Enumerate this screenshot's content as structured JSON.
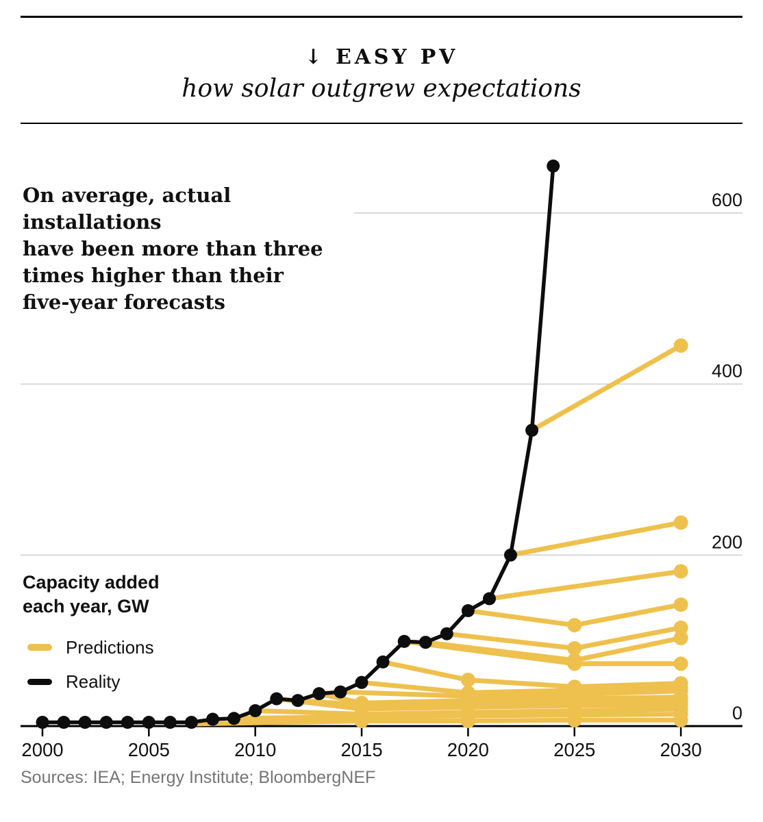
{
  "header": {
    "title": "↓ EASY PV",
    "subtitle": "how solar outgrew expectations"
  },
  "annotation": {
    "lines": [
      "On average, actual installations",
      "have been more than three",
      "times higher than their",
      "five-year forecasts"
    ]
  },
  "axis_unit": {
    "line1": "Capacity added",
    "line2": "each year, GW"
  },
  "legend": {
    "items": [
      {
        "label": "Predictions",
        "color": "#EEC04D"
      },
      {
        "label": "Reality",
        "color": "#0d0d0d"
      }
    ]
  },
  "sources": "Sources: IEA; Energy Institute; BloombergNEF",
  "colors": {
    "prediction": "#EEC04D",
    "reality": "#0d0d0d",
    "gridline": "#D8D8D8",
    "axis": "#000000",
    "tick_text": "#111111",
    "source_text": "#757575",
    "background": "#ffffff"
  },
  "chart_data": {
    "type": "line",
    "title": "EASY PV — how solar outgrew expectations",
    "xlabel": "",
    "ylabel": "Capacity added each year, GW",
    "x_ticks": [
      2000,
      2005,
      2010,
      2015,
      2020,
      2025,
      2030
    ],
    "y_ticks": [
      0,
      200,
      400,
      600
    ],
    "xlim": [
      2000,
      2032
    ],
    "ylim": [
      0,
      680
    ],
    "grid": "horizontal",
    "legend_position": "left",
    "series": [
      {
        "name": "Reality",
        "role": "reality",
        "points": [
          [
            2000,
            0.3
          ],
          [
            2001,
            0.4
          ],
          [
            2002,
            0.5
          ],
          [
            2003,
            0.6
          ],
          [
            2004,
            1.0
          ],
          [
            2005,
            1.4
          ],
          [
            2006,
            1.6
          ],
          [
            2007,
            2.5
          ],
          [
            2008,
            8
          ],
          [
            2009,
            9
          ],
          [
            2010,
            18
          ],
          [
            2011,
            32
          ],
          [
            2012,
            30
          ],
          [
            2013,
            38
          ],
          [
            2014,
            40
          ],
          [
            2015,
            51
          ],
          [
            2016,
            75
          ],
          [
            2017,
            99
          ],
          [
            2018,
            98
          ],
          [
            2019,
            108
          ],
          [
            2020,
            135
          ],
          [
            2021,
            149
          ],
          [
            2022,
            200
          ],
          [
            2023,
            346
          ],
          [
            2024,
            655
          ]
        ]
      },
      {
        "name": "Prediction (five-year forecast)",
        "role": "prediction",
        "points": [
          [
            2007,
            2.5
          ],
          [
            2015,
            6
          ],
          [
            2020,
            6
          ],
          [
            2025,
            7
          ],
          [
            2030,
            7
          ]
        ]
      },
      {
        "name": "Prediction (five-year forecast)",
        "role": "prediction",
        "points": [
          [
            2009,
            9
          ],
          [
            2015,
            11
          ],
          [
            2020,
            12
          ],
          [
            2025,
            13
          ],
          [
            2030,
            14
          ]
        ]
      },
      {
        "name": "Prediction (five-year forecast)",
        "role": "prediction",
        "points": [
          [
            2010,
            18
          ],
          [
            2015,
            14
          ],
          [
            2020,
            16
          ],
          [
            2025,
            18
          ],
          [
            2030,
            20
          ]
        ]
      },
      {
        "name": "Prediction (five-year forecast)",
        "role": "prediction",
        "points": [
          [
            2011,
            32
          ],
          [
            2015,
            20
          ],
          [
            2020,
            22
          ],
          [
            2025,
            24
          ],
          [
            2030,
            25
          ]
        ]
      },
      {
        "name": "Prediction (five-year forecast)",
        "role": "prediction",
        "points": [
          [
            2012,
            30
          ],
          [
            2015,
            25
          ],
          [
            2020,
            27
          ],
          [
            2025,
            29
          ],
          [
            2030,
            30
          ]
        ]
      },
      {
        "name": "Prediction (five-year forecast)",
        "role": "prediction",
        "points": [
          [
            2013,
            38
          ],
          [
            2015,
            27
          ],
          [
            2020,
            30
          ],
          [
            2025,
            32
          ],
          [
            2030,
            34
          ]
        ]
      },
      {
        "name": "Prediction (five-year forecast)",
        "role": "prediction",
        "points": [
          [
            2014,
            40
          ],
          [
            2020,
            35
          ],
          [
            2025,
            37
          ],
          [
            2030,
            41
          ]
        ]
      },
      {
        "name": "Prediction (five-year forecast)",
        "role": "prediction",
        "points": [
          [
            2015,
            51
          ],
          [
            2020,
            39
          ],
          [
            2025,
            42
          ],
          [
            2030,
            45
          ]
        ]
      },
      {
        "name": "Prediction (five-year forecast)",
        "role": "prediction",
        "points": [
          [
            2016,
            75
          ],
          [
            2020,
            54
          ],
          [
            2025,
            46
          ],
          [
            2030,
            50
          ]
        ]
      },
      {
        "name": "Prediction (five-year forecast)",
        "role": "prediction",
        "points": [
          [
            2017,
            99
          ],
          [
            2025,
            73
          ],
          [
            2030,
            73
          ]
        ]
      },
      {
        "name": "Prediction (five-year forecast)",
        "role": "prediction",
        "points": [
          [
            2018,
            98
          ],
          [
            2025,
            77
          ],
          [
            2030,
            103
          ]
        ]
      },
      {
        "name": "Prediction (five-year forecast)",
        "role": "prediction",
        "points": [
          [
            2019,
            108
          ],
          [
            2025,
            91
          ],
          [
            2030,
            115
          ]
        ]
      },
      {
        "name": "Prediction (five-year forecast)",
        "role": "prediction",
        "points": [
          [
            2020,
            135
          ],
          [
            2025,
            118
          ],
          [
            2030,
            142
          ]
        ]
      },
      {
        "name": "Prediction (five-year forecast)",
        "role": "prediction",
        "points": [
          [
            2021,
            149
          ],
          [
            2030,
            181
          ]
        ]
      },
      {
        "name": "Prediction (five-year forecast)",
        "role": "prediction",
        "points": [
          [
            2022,
            200
          ],
          [
            2030,
            238
          ]
        ]
      },
      {
        "name": "Prediction (five-year forecast)",
        "role": "prediction",
        "points": [
          [
            2023,
            346
          ],
          [
            2030,
            445
          ]
        ]
      }
    ]
  }
}
